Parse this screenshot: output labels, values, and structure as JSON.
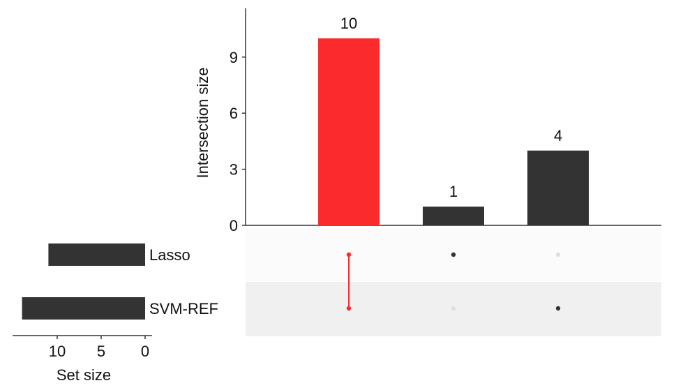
{
  "chart_data": {
    "type": "bar",
    "subtype": "upset",
    "sets": [
      {
        "name": "Lasso",
        "size": 11
      },
      {
        "name": "SVM-REF",
        "size": 14
      }
    ],
    "intersections": [
      {
        "members": [
          "Lasso",
          "SVM-REF"
        ],
        "value": 10,
        "label": "10",
        "highlight": true
      },
      {
        "members": [
          "Lasso"
        ],
        "value": 1,
        "label": "1",
        "highlight": false
      },
      {
        "members": [
          "SVM-REF"
        ],
        "value": 4,
        "label": "4",
        "highlight": false
      }
    ],
    "ylabel": "Intersection size",
    "ylim": [
      0,
      11.5
    ],
    "yticks": [
      "0",
      "3",
      "6",
      "9"
    ],
    "set_size_label": "Set size",
    "set_size_ticks": [
      "10",
      "5",
      "0"
    ],
    "set_size_range": [
      0,
      15
    ],
    "colors": {
      "highlight": "#fb2a2d",
      "bar": "#333333",
      "dot_active": "#333333",
      "dot_inactive": "#dddddd",
      "row_shade": "#f0f0f0",
      "axis": "#333333"
    }
  }
}
